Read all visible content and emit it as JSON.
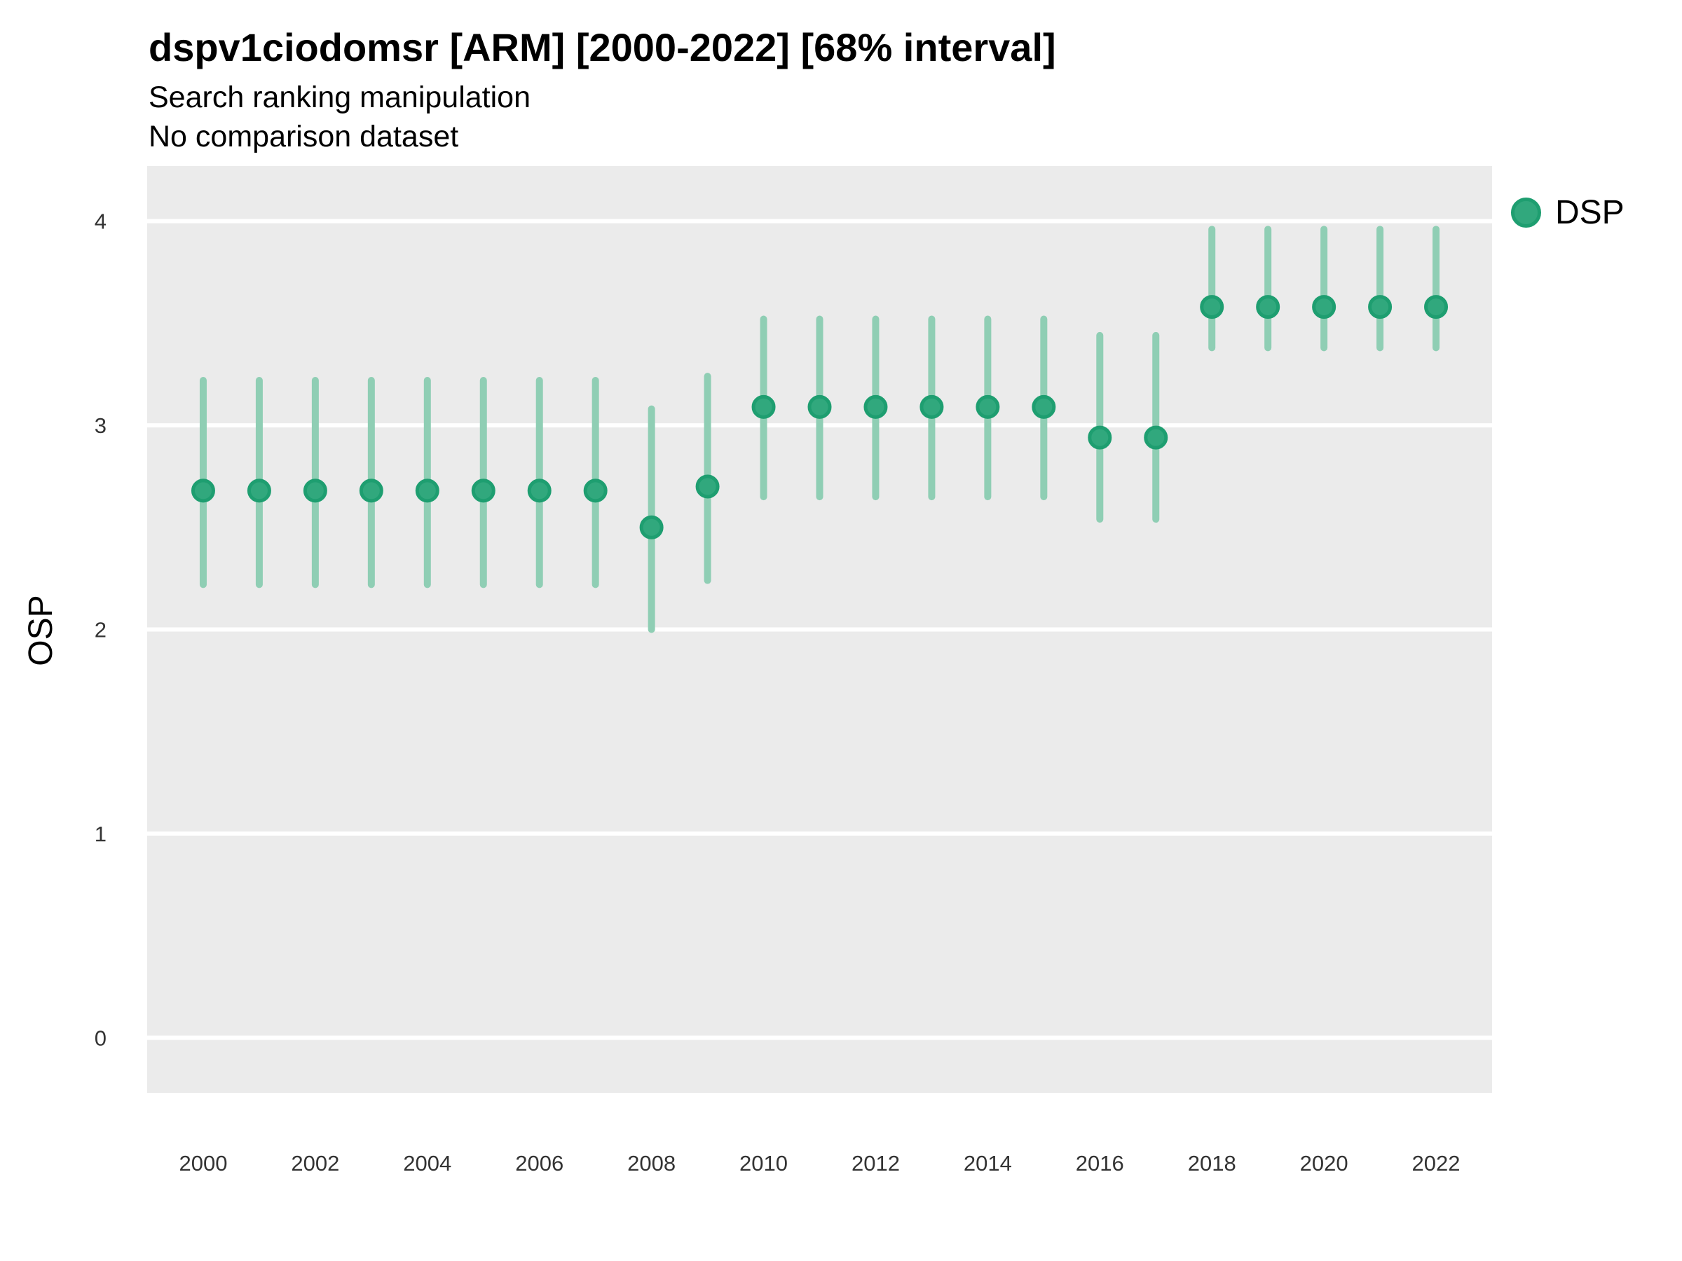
{
  "header": {
    "title": "dspv1ciodomsr [ARM] [2000-2022] [68% interval]",
    "subtitle": "Search ranking manipulation",
    "note": "No comparison dataset"
  },
  "legend": {
    "label": "DSP"
  },
  "colors": {
    "point_fill": "#31A87D",
    "point_stroke": "#1E9E70",
    "interval": "#8FCEB4",
    "panel_bg": "#EBEBEB",
    "grid": "#FFFFFF",
    "tick_text": "#333333",
    "text": "#000000"
  },
  "chart_data": {
    "type": "pointrange",
    "title": "dspv1ciodomsr [ARM] [2000-2022] [68% interval]",
    "subtitle": "Search ranking manipulation",
    "note": "No comparison dataset",
    "interval_label": "68% interval",
    "xlabel": "",
    "ylabel": "OSP",
    "legend_position": "right",
    "series_name": "DSP",
    "x": [
      2000,
      2001,
      2002,
      2003,
      2004,
      2005,
      2006,
      2007,
      2008,
      2009,
      2010,
      2011,
      2012,
      2013,
      2014,
      2015,
      2016,
      2017,
      2018,
      2019,
      2020,
      2021,
      2022
    ],
    "values": [
      2.68,
      2.68,
      2.68,
      2.68,
      2.68,
      2.68,
      2.68,
      2.68,
      2.5,
      2.7,
      3.09,
      3.09,
      3.09,
      3.09,
      3.09,
      3.09,
      2.94,
      2.94,
      3.58,
      3.58,
      3.58,
      3.58,
      3.58
    ],
    "lower": [
      2.22,
      2.22,
      2.22,
      2.22,
      2.22,
      2.22,
      2.22,
      2.22,
      2.0,
      2.24,
      2.65,
      2.65,
      2.65,
      2.65,
      2.65,
      2.65,
      2.54,
      2.54,
      3.38,
      3.38,
      3.38,
      3.38,
      3.38
    ],
    "upper": [
      3.22,
      3.22,
      3.22,
      3.22,
      3.22,
      3.22,
      3.22,
      3.22,
      3.08,
      3.24,
      3.52,
      3.52,
      3.52,
      3.52,
      3.52,
      3.52,
      3.44,
      3.44,
      3.96,
      3.96,
      3.96,
      3.96,
      3.96
    ],
    "xticks": [
      2000,
      2002,
      2004,
      2006,
      2008,
      2010,
      2012,
      2014,
      2016,
      2018,
      2020,
      2022
    ],
    "yticks": [
      0,
      1,
      2,
      3,
      4
    ],
    "xlim": [
      1999,
      2023
    ],
    "ylim": [
      -0.27,
      4.27
    ],
    "grid": "horizontal-major-only"
  }
}
